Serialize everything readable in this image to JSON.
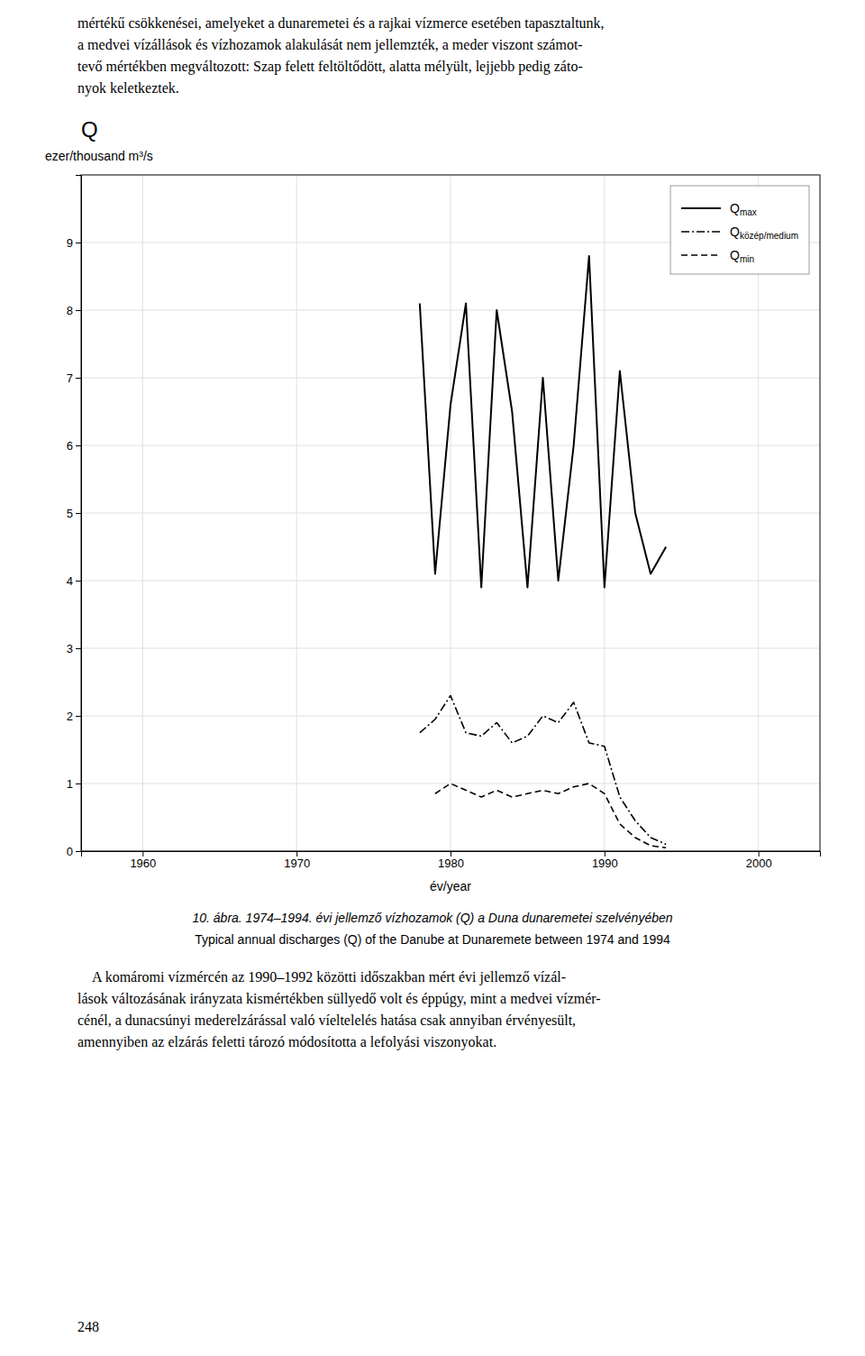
{
  "chart_data": {
    "type": "line",
    "title": "Q",
    "y_label": "ezer/thousand m³/s",
    "x_label": "év/year",
    "x": [
      1974,
      1975,
      1976,
      1977,
      1978,
      1979,
      1980,
      1981,
      1982,
      1983,
      1984,
      1985,
      1986,
      1987,
      1988,
      1989,
      1990,
      1991,
      1992,
      1993,
      1994
    ],
    "series": [
      {
        "name": "Qmax",
        "color": "#000000",
        "line_style": "solid",
        "values": [
          null,
          null,
          null,
          null,
          8.1,
          4.1,
          6.6,
          8.1,
          3.9,
          8.0,
          6.5,
          3.9,
          7.0,
          4.0,
          6.0,
          8.8,
          3.9,
          7.1,
          5.0,
          4.1,
          4.5
        ]
      },
      {
        "name": "Qközép/medium",
        "color": "#000000",
        "line_style": "dashdot",
        "values": [
          null,
          null,
          null,
          null,
          1.75,
          1.95,
          2.3,
          1.75,
          1.7,
          1.9,
          1.6,
          1.7,
          2.0,
          1.9,
          2.2,
          1.6,
          1.55,
          0.8,
          0.45,
          0.2,
          0.1
        ]
      },
      {
        "name": "Qmin",
        "color": "#000000",
        "line_style": "dashed",
        "values": [
          null,
          null,
          null,
          null,
          null,
          0.85,
          1.0,
          0.9,
          0.8,
          0.9,
          0.8,
          0.85,
          0.9,
          0.85,
          0.95,
          1.0,
          0.85,
          0.4,
          0.2,
          0.08,
          0.05
        ]
      }
    ],
    "xlim": [
      1956,
      2004
    ],
    "ylim": [
      0,
      10
    ],
    "xticks": [
      1960,
      1970,
      1980,
      1990,
      2000
    ],
    "yticks": [
      0,
      1,
      2,
      3,
      4,
      5,
      6,
      7,
      8,
      9
    ],
    "grid": true,
    "legend": "upper right",
    "annotations": [
      "mértékű csökkenései, amelyeket a dunaremetei és a rajkai vízmerce esetében tapasztaltunk,\na medvei vízállások és vízhozamok alakulását nem jellemzték, a meder viszont számot-\ntevő mértékben megváltozott: Szap felett feltöltődött, alatta mélyült, lejjebb pedig záto-\nnyok keletkeztek.",
      "10. ábra. 1974–1994. évi jellemző vízhozamok (Q) a Duna dunaremetei szelvényében",
      "Typical annual discharges (Q) of the Danube at Dunaremete between 1974 and 1994",
      "\tA komáromi vízmércén az 1990–1992 közötti időszakban mért évi jellemző vízál-\nlások változásának irányzata kismértékben süllyedő volt és éppúgy, mint a medvei vízmér-\ncénél, a dunacsúnyi mederelzárással való víeltelelés hatása csak annyiban érvényesült,\namennyiben az elzárás feletti tározó módosította a lefolyási viszonyokat.",
      "248"
    ]
  }
}
